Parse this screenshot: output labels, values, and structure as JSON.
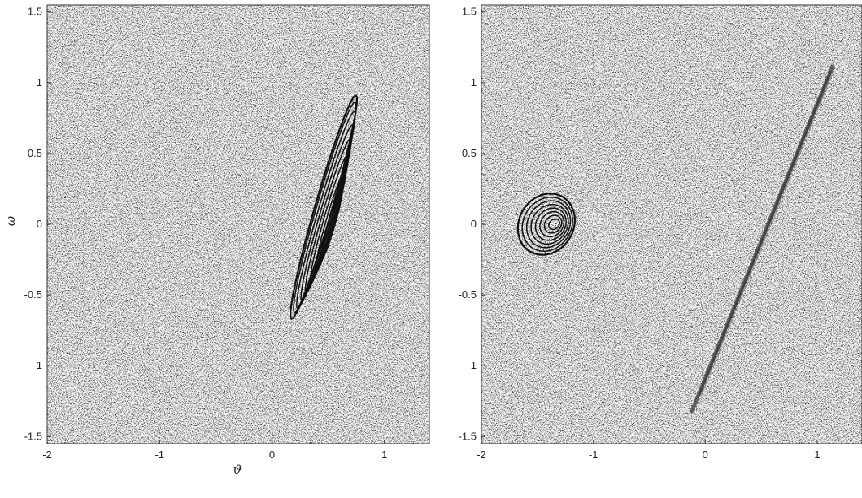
{
  "chart_data": [
    {
      "type": "contour",
      "panel": "left",
      "xlabel": "ϑ",
      "ylabel": "ω",
      "xlim": [
        -2,
        1.4
      ],
      "ylim": [
        -1.55,
        1.55
      ],
      "xticks": [
        -2,
        -1,
        0,
        1
      ],
      "xtick_labels": [
        "-2",
        "-1",
        "0",
        "1"
      ],
      "yticks": [
        -1.5,
        -1,
        -0.5,
        0,
        0.5,
        1,
        1.5
      ],
      "ytick_labels": [
        "-1.5",
        "-1",
        "-0.5",
        "0",
        "0.5",
        "1",
        "1.5"
      ],
      "background": "dense grey speckle (noise-like density field)",
      "contour_color": "#111111",
      "contours": [
        {
          "center": [
            0.46,
            0.12
          ],
          "rotation_deg": 70,
          "semi_major": 0.84,
          "semi_minor": 0.075
        },
        {
          "center": [
            0.47,
            0.12
          ],
          "rotation_deg": 70,
          "semi_major": 0.79,
          "semi_minor": 0.07
        },
        {
          "center": [
            0.48,
            0.1
          ],
          "rotation_deg": 70,
          "semi_major": 0.74,
          "semi_minor": 0.065
        },
        {
          "center": [
            0.49,
            0.08
          ],
          "rotation_deg": 70,
          "semi_major": 0.66,
          "semi_minor": 0.058
        },
        {
          "center": [
            0.5,
            0.06
          ],
          "rotation_deg": 70,
          "semi_major": 0.58,
          "semi_minor": 0.052
        },
        {
          "center": [
            0.51,
            0.04
          ],
          "rotation_deg": 70,
          "semi_major": 0.48,
          "semi_minor": 0.045
        },
        {
          "center": [
            0.52,
            0.02
          ],
          "rotation_deg": 70,
          "semi_major": 0.38,
          "semi_minor": 0.038
        },
        {
          "center": [
            0.53,
            0.0
          ],
          "rotation_deg": 70,
          "semi_major": 0.27,
          "semi_minor": 0.03
        },
        {
          "center": [
            0.52,
            0.0
          ],
          "rotation_deg": 70,
          "semi_major": 0.16,
          "semi_minor": 0.022
        }
      ]
    },
    {
      "type": "contour",
      "panel": "right",
      "xlabel": "",
      "ylabel": "",
      "xlim": [
        -2,
        1.4
      ],
      "ylim": [
        -1.55,
        1.55
      ],
      "xticks": [
        -2,
        -1,
        0,
        1
      ],
      "xtick_labels": [
        "-2",
        "-1",
        "0",
        "1"
      ],
      "yticks": [
        -1.5,
        -1,
        -0.5,
        0,
        0.5,
        1,
        1.5
      ],
      "ytick_labels": [
        "-1.5",
        "-1",
        "-0.5",
        "0",
        "0.5",
        "1",
        "1.5"
      ],
      "background": "dense grey speckle (noise-like density field)",
      "contour_color": "#111111",
      "contours": [
        {
          "center": [
            -1.42,
            0.0
          ],
          "rotation_deg": 20,
          "semi_major": 0.26,
          "semi_minor": 0.21
        },
        {
          "center": [
            -1.41,
            0.0
          ],
          "rotation_deg": 20,
          "semi_major": 0.23,
          "semi_minor": 0.185
        },
        {
          "center": [
            -1.4,
            0.0
          ],
          "rotation_deg": 20,
          "semi_major": 0.2,
          "semi_minor": 0.16
        },
        {
          "center": [
            -1.39,
            0.0
          ],
          "rotation_deg": 20,
          "semi_major": 0.17,
          "semi_minor": 0.135
        },
        {
          "center": [
            -1.38,
            0.0
          ],
          "rotation_deg": 20,
          "semi_major": 0.14,
          "semi_minor": 0.11
        },
        {
          "center": [
            -1.37,
            0.0
          ],
          "rotation_deg": 20,
          "semi_major": 0.11,
          "semi_minor": 0.085
        },
        {
          "center": [
            -1.36,
            0.0
          ],
          "rotation_deg": 20,
          "semi_major": 0.08,
          "semi_minor": 0.06
        },
        {
          "center": [
            -1.35,
            0.0
          ],
          "rotation_deg": 20,
          "semi_major": 0.05,
          "semi_minor": 0.035
        }
      ],
      "filaments": [
        {
          "from": [
            -0.12,
            -1.32
          ],
          "to": [
            1.14,
            1.12
          ],
          "width": 0.035
        },
        {
          "from": [
            -0.05,
            -1.2
          ],
          "to": [
            1.12,
            1.08
          ],
          "width": 0.02
        }
      ]
    }
  ]
}
